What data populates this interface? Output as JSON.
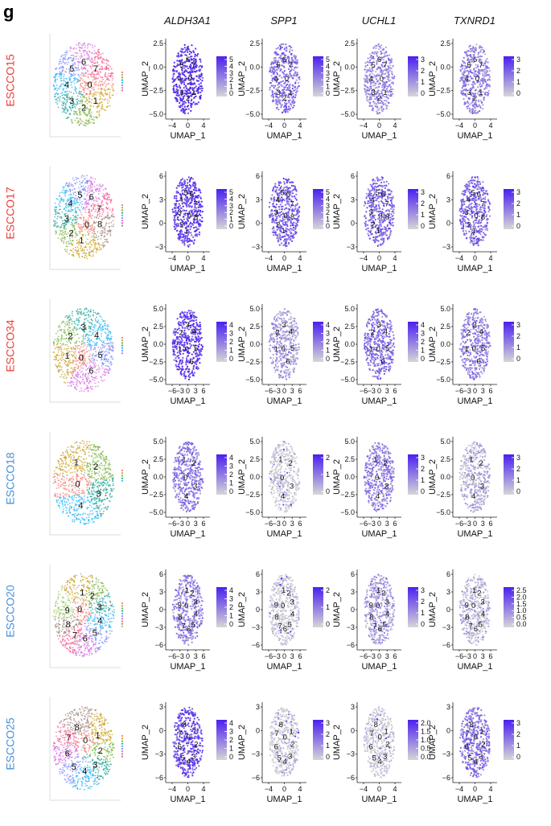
{
  "panel_label": "g",
  "colors": {
    "high": "#4B1FF0",
    "low": "#D6D6D6",
    "red_label": "#E8413A",
    "blue_label": "#4A90D9",
    "cluster_palette": [
      "#F07D74",
      "#C9A227",
      "#7CB342",
      "#26A69A",
      "#29B6F6",
      "#7E8CF5",
      "#D46CE0",
      "#F06292",
      "#A1887F",
      "#9CCC65"
    ]
  },
  "chart_data": {
    "type": "scatter",
    "genes": [
      "ALDH3A1",
      "SPP1",
      "UCHL1",
      "TXNRD1"
    ],
    "axis_labels": {
      "x": "UMAP_1",
      "y": "UMAP_2"
    },
    "samples": [
      {
        "name": "ESCCO15",
        "label_color": "red",
        "clusters": [
          "0",
          "1",
          "2",
          "3",
          "4",
          "5",
          "6",
          "7"
        ],
        "xticks": [
          "−4",
          "0",
          "4"
        ],
        "yticks": [
          "2.5",
          "0.0",
          "−2.5",
          "−5.0"
        ],
        "yrange": [
          -5.0,
          2.5
        ],
        "genes": [
          {
            "gene": "ALDH3A1",
            "scale_ticks": [
              "5",
              "4",
              "3",
              "2",
              "1",
              "0"
            ],
            "max": 5,
            "intensity": 0.9
          },
          {
            "gene": "SPP1",
            "scale_ticks": [
              "5",
              "4",
              "3",
              "2",
              "1",
              "0"
            ],
            "max": 5,
            "intensity": 0.55
          },
          {
            "gene": "UCHL1",
            "scale_ticks": [
              "3",
              "2",
              "1",
              "0"
            ],
            "max": 3,
            "intensity": 0.4
          },
          {
            "gene": "TXNRD1",
            "scale_ticks": [
              "3",
              "2",
              "1",
              "0"
            ],
            "max": 3,
            "intensity": 0.45
          }
        ]
      },
      {
        "name": "ESCCO17",
        "label_color": "red",
        "clusters": [
          "0",
          "1",
          "2",
          "3",
          "4",
          "5",
          "6",
          "7",
          "8"
        ],
        "xticks": [
          "−4",
          "0",
          "4"
        ],
        "yticks": [
          "6",
          "3",
          "0",
          "−3"
        ],
        "yrange": [
          -3,
          6
        ],
        "genes": [
          {
            "gene": "ALDH3A1",
            "scale_ticks": [
              "5",
              "4",
              "3",
              "2",
              "1",
              "0"
            ],
            "max": 5,
            "intensity": 0.8
          },
          {
            "gene": "SPP1",
            "scale_ticks": [
              "5",
              "4",
              "3",
              "2",
              "1",
              "0"
            ],
            "max": 5,
            "intensity": 0.65
          },
          {
            "gene": "UCHL1",
            "scale_ticks": [
              "3",
              "2",
              "1",
              "0"
            ],
            "max": 3,
            "intensity": 0.6
          },
          {
            "gene": "TXNRD1",
            "scale_ticks": [
              "3",
              "2",
              "1",
              "0"
            ],
            "max": 3,
            "intensity": 0.6
          }
        ]
      },
      {
        "name": "ESCCO34",
        "label_color": "red",
        "clusters": [
          "0",
          "1",
          "2",
          "3",
          "4",
          "5",
          "6"
        ],
        "xticks": [
          "−6",
          "−3",
          "0",
          "3",
          "6"
        ],
        "yticks": [
          "5.0",
          "2.5",
          "0.0",
          "−2.5",
          "−5.0"
        ],
        "yrange": [
          -5.0,
          5.0
        ],
        "genes": [
          {
            "gene": "ALDH3A1",
            "scale_ticks": [
              "4",
              "3",
              "2",
              "1",
              "0"
            ],
            "max": 4,
            "intensity": 0.85
          },
          {
            "gene": "SPP1",
            "scale_ticks": [
              "4",
              "3",
              "2",
              "1",
              "0"
            ],
            "max": 4,
            "intensity": 0.3
          },
          {
            "gene": "UCHL1",
            "scale_ticks": [
              "4",
              "3",
              "2",
              "1",
              "0"
            ],
            "max": 4,
            "intensity": 0.55
          },
          {
            "gene": "TXNRD1",
            "scale_ticks": [
              "3",
              "2",
              "1",
              "0"
            ],
            "max": 3,
            "intensity": 0.45
          }
        ]
      },
      {
        "name": "ESCCO18",
        "label_color": "blue",
        "clusters": [
          "0",
          "1",
          "2",
          "3",
          "4"
        ],
        "xticks": [
          "−6",
          "−3",
          "0",
          "3",
          "6"
        ],
        "yticks": [
          "5.0",
          "2.5",
          "0.0",
          "−2.5",
          "−5.0"
        ],
        "yrange": [
          -5.0,
          5.0
        ],
        "genes": [
          {
            "gene": "ALDH3A1",
            "scale_ticks": [
              "4",
              "3",
              "2",
              "1",
              "0"
            ],
            "max": 4,
            "intensity": 0.5
          },
          {
            "gene": "SPP1",
            "scale_ticks": [
              "2",
              "1",
              "0"
            ],
            "max": 2,
            "intensity": 0.03
          },
          {
            "gene": "UCHL1",
            "scale_ticks": [
              "3",
              "2",
              "1",
              "0"
            ],
            "max": 3,
            "intensity": 0.45
          },
          {
            "gene": "TXNRD1",
            "scale_ticks": [
              "3",
              "2",
              "1",
              "0"
            ],
            "max": 3,
            "intensity": 0.2
          }
        ]
      },
      {
        "name": "ESCCO20",
        "label_color": "blue",
        "clusters": [
          "0",
          "1",
          "2",
          "3",
          "4",
          "5",
          "6",
          "7",
          "8",
          "9"
        ],
        "xticks": [
          "−6",
          "−3",
          "0",
          "3",
          "6"
        ],
        "yticks": [
          "6",
          "3",
          "0",
          "−3",
          "−6"
        ],
        "yrange": [
          -6,
          6
        ],
        "genes": [
          {
            "gene": "ALDH3A1",
            "scale_ticks": [
              "4",
              "3",
              "2",
              "1",
              "0"
            ],
            "max": 4,
            "intensity": 0.45
          },
          {
            "gene": "SPP1",
            "scale_ticks": [
              "2",
              "1",
              "0"
            ],
            "max": 2,
            "intensity": 0.03
          },
          {
            "gene": "UCHL1",
            "scale_ticks": [
              "3",
              "2",
              "1",
              "0"
            ],
            "max": 3,
            "intensity": 0.3
          },
          {
            "gene": "TXNRD1",
            "scale_ticks": [
              "2.5",
              "2.0",
              "1.5",
              "1.0",
              "0.5",
              "0.0"
            ],
            "max": 2.5,
            "intensity": 0.15
          }
        ]
      },
      {
        "name": "ESCCO25",
        "label_color": "blue",
        "clusters": [
          "0",
          "1",
          "2",
          "3",
          "4",
          "5",
          "6",
          "7",
          "8"
        ],
        "xticks": [
          "−4",
          "0",
          "4"
        ],
        "yticks": [
          "3",
          "0",
          "−3",
          "−6"
        ],
        "yrange": [
          -6,
          3
        ],
        "genes": [
          {
            "gene": "ALDH3A1",
            "scale_ticks": [
              "4",
              "3",
              "2",
              "1",
              "0"
            ],
            "max": 4,
            "intensity": 0.75
          },
          {
            "gene": "SPP1",
            "scale_ticks": [
              "3",
              "2",
              "1",
              "0"
            ],
            "max": 3,
            "intensity": 0.06
          },
          {
            "gene": "UCHL1",
            "scale_ticks": [
              "2.0",
              "1.5",
              "1.0",
              "0.5",
              "0.0"
            ],
            "max": 2.0,
            "intensity": 0.03
          },
          {
            "gene": "TXNRD1",
            "scale_ticks": [
              "3",
              "2",
              "1",
              "0"
            ],
            "max": 3,
            "intensity": 0.55
          }
        ]
      }
    ]
  }
}
